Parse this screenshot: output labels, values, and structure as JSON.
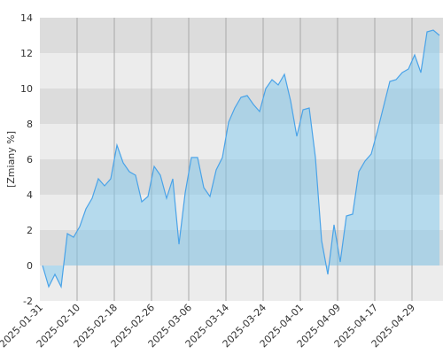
{
  "chart_data": {
    "type": "area",
    "y_label": "[Zmiany %]",
    "categories": [
      "2025-01-31",
      null,
      null,
      null,
      null,
      null,
      "2025-02-10",
      null,
      null,
      null,
      null,
      null,
      "2025-02-18",
      null,
      null,
      null,
      null,
      null,
      "2025-02-26",
      null,
      null,
      null,
      null,
      null,
      "2025-03-06",
      null,
      null,
      null,
      null,
      null,
      "2025-03-14",
      null,
      null,
      null,
      null,
      null,
      "2025-03-24",
      null,
      null,
      null,
      null,
      null,
      "2025-04-01",
      null,
      null,
      null,
      null,
      null,
      "2025-04-09",
      null,
      null,
      null,
      null,
      null,
      "2025-04-17",
      null,
      null,
      null,
      null,
      null,
      "2025-04-29",
      null,
      null,
      null,
      null
    ],
    "series": [
      {
        "color": "#4aa3e8",
        "values": [
          0,
          -1.2,
          -0.5,
          -1.2,
          1.8,
          1.6,
          2.2,
          3.2,
          3.8,
          4.9,
          4.5,
          4.9,
          6.8,
          5.8,
          5.3,
          5.1,
          3.6,
          3.9,
          5.6,
          5.1,
          3.8,
          4.9,
          1.2,
          4.1,
          6.1,
          6.1,
          4.4,
          3.9,
          5.4,
          6.1,
          8.1,
          8.9,
          9.5,
          9.6,
          9.1,
          8.7,
          10.0,
          10.5,
          10.2,
          10.8,
          9.3,
          7.3,
          8.8,
          8.9,
          6.1,
          1.4,
          -0.5,
          2.3,
          0.2,
          2.8,
          2.9,
          5.3,
          5.9,
          6.3,
          7.6,
          9.0,
          10.4,
          10.5,
          10.9,
          11.1,
          11.9,
          10.9,
          13.2,
          13.3,
          13.0
        ]
      }
    ],
    "ylim": [
      -2,
      14
    ],
    "yticks": [
      -2,
      0,
      2,
      4,
      6,
      8,
      10,
      12,
      14
    ],
    "grid": true
  }
}
